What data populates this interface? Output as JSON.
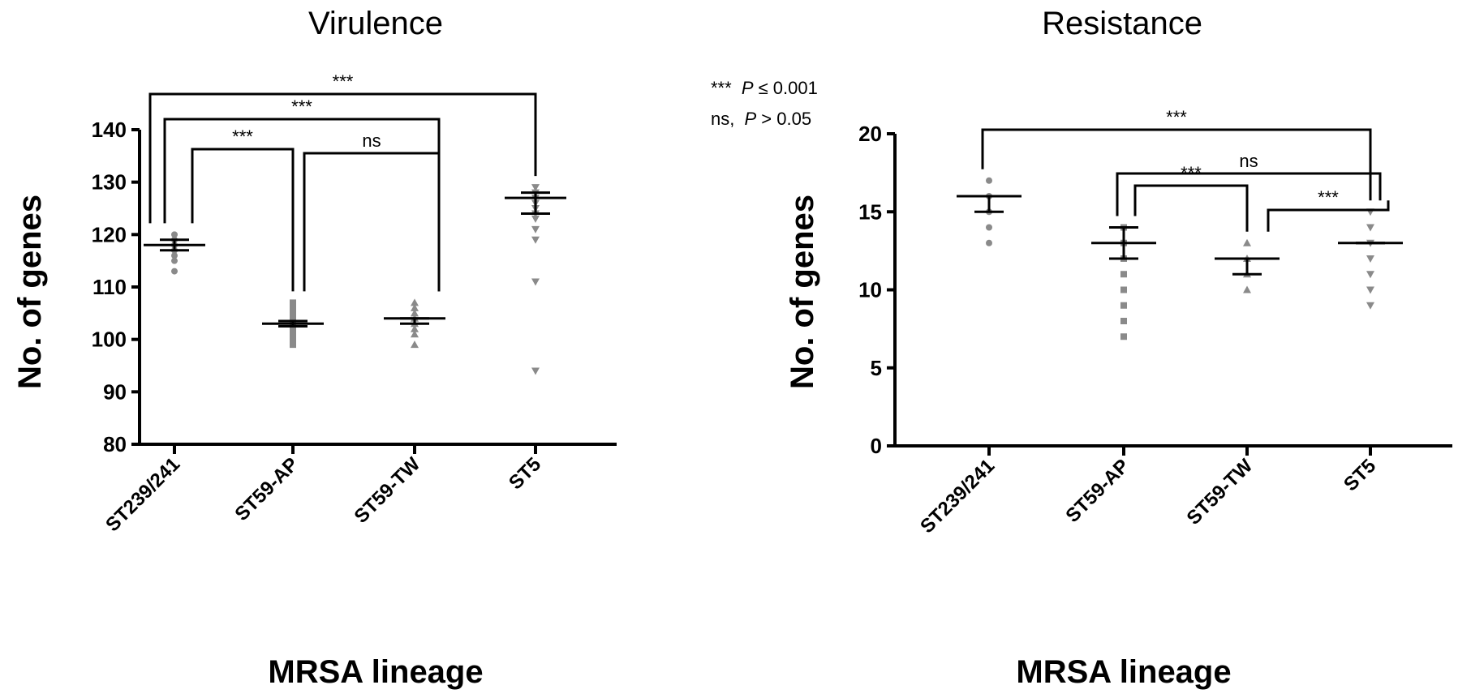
{
  "chart_data": [
    {
      "type": "scatter",
      "title": "Virulence",
      "xlabel": "MRSA lineage",
      "ylabel": "No. of genes",
      "ylim": [
        80,
        140
      ],
      "yticks": [
        80,
        90,
        100,
        110,
        120,
        130,
        140
      ],
      "categories": [
        "ST239/241",
        "ST59-AP",
        "ST59-TW",
        "ST5"
      ],
      "groups": [
        {
          "category": "ST239/241",
          "marker": "circle",
          "mean": 118,
          "error_low": 117,
          "error_high": 119,
          "points": [
            113,
            115,
            116,
            117,
            117,
            118,
            118,
            119,
            119,
            120
          ]
        },
        {
          "category": "ST59-AP",
          "marker": "square",
          "mean": 103,
          "error_low": 102.5,
          "error_high": 103.5,
          "points": [
            99,
            99.5,
            100,
            101,
            101.5,
            102,
            102.5,
            103,
            103.5,
            104,
            104.5,
            105,
            106,
            107
          ]
        },
        {
          "category": "ST59-TW",
          "marker": "triangle-up",
          "mean": 104,
          "error_low": 103,
          "error_high": 104,
          "points": [
            99,
            101,
            102,
            103,
            104,
            105,
            106,
            107
          ]
        },
        {
          "category": "ST5",
          "marker": "triangle-down",
          "mean": 127,
          "error_low": 124,
          "error_high": 128,
          "points": [
            94,
            111,
            119,
            121,
            123,
            124,
            125,
            126,
            127,
            128,
            129
          ]
        }
      ],
      "comparisons": [
        {
          "from": "ST239/241",
          "to": "ST5",
          "label": "***"
        },
        {
          "from": "ST239/241",
          "to": "ST59-TW",
          "label": "***"
        },
        {
          "from": "ST239/241",
          "to": "ST59-AP",
          "label": "***"
        },
        {
          "from": "ST59-AP",
          "to": "ST59-TW",
          "label": "ns"
        }
      ]
    },
    {
      "type": "scatter",
      "title": "Resistance",
      "xlabel": "MRSA lineage",
      "ylabel": "No. of genes",
      "ylim": [
        0,
        20
      ],
      "yticks": [
        0,
        5,
        10,
        15,
        20
      ],
      "categories": [
        "ST239/241",
        "ST59-AP",
        "ST59-TW",
        "ST5"
      ],
      "groups": [
        {
          "category": "ST239/241",
          "marker": "circle",
          "mean": 16,
          "error_low": 15,
          "error_high": 16,
          "points": [
            13,
            14,
            15,
            16,
            17
          ]
        },
        {
          "category": "ST59-AP",
          "marker": "square",
          "mean": 13,
          "error_low": 12,
          "error_high": 14,
          "points": [
            7,
            8,
            9,
            10,
            11,
            12,
            13,
            14
          ]
        },
        {
          "category": "ST59-TW",
          "marker": "triangle-up",
          "mean": 12,
          "error_low": 11,
          "error_high": 12,
          "points": [
            10,
            11,
            12,
            13
          ]
        },
        {
          "category": "ST5",
          "marker": "triangle-down",
          "mean": 13,
          "error_low": 13,
          "error_high": 13,
          "points": [
            9,
            10,
            11,
            12,
            13,
            14,
            15
          ]
        }
      ],
      "comparisons": [
        {
          "from": "ST239/241",
          "to": "ST5",
          "label": "***"
        },
        {
          "from": "ST59-AP",
          "to": "ST5",
          "label": "ns"
        },
        {
          "from": "ST59-AP",
          "to": "ST59-TW",
          "label": "***"
        },
        {
          "from": "ST59-TW",
          "to": "ST5",
          "label": "***"
        }
      ]
    }
  ],
  "significance_key": [
    {
      "stars": "***",
      "italic": "P",
      "text": " ≤ 0.001"
    },
    {
      "stars": "ns,",
      "italic": "P",
      "text": " > 0.05"
    }
  ],
  "colors": {
    "axis": "#000000",
    "points": "#8a8a8a"
  }
}
